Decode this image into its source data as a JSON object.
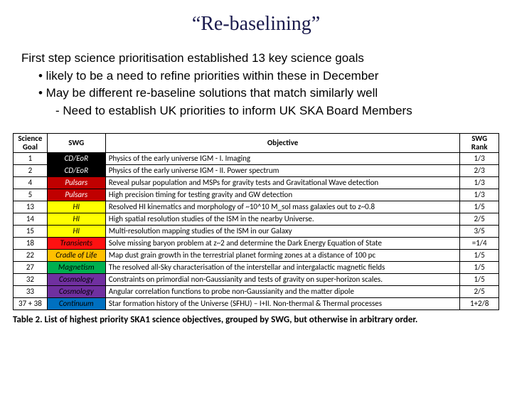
{
  "title": "“Re-baselining”",
  "intro": {
    "line1": "First step science prioritisation established 13 key science goals",
    "bullet1": "• likely to be a need to refine priorities within these in December",
    "bullet2": "• May be different re-baseline solutions that match similarly well",
    "subbullet": "- Need to establish UK priorities to inform UK SKA Board Members"
  },
  "table": {
    "headers": {
      "goal": "Science Goal",
      "swg": "SWG",
      "objective": "Objective",
      "rank": "SWG Rank"
    },
    "col_widths": {
      "goal": "7%",
      "swg": "12%",
      "objective": "73%",
      "rank": "8%"
    },
    "header_bg": "#ffffff",
    "border_color": "#000000",
    "font_size": 11,
    "rows": [
      {
        "goal": "1",
        "swg": "CD/EoR",
        "swg_bg": "#000000",
        "swg_fg": "#ffffff",
        "objective": "Physics of the early universe IGM - I. Imaging",
        "rank": "1/3"
      },
      {
        "goal": "2",
        "swg": "CD/EoR",
        "swg_bg": "#000000",
        "swg_fg": "#ffffff",
        "objective": "Physics of the early universe IGM - II. Power spectrum",
        "rank": "2/3"
      },
      {
        "goal": "4",
        "swg": "Pulsars",
        "swg_bg": "#c00000",
        "swg_fg": "#ffffff",
        "objective": "Reveal pulsar population and MSPs for gravity tests and Gravitational Wave detection",
        "rank": "1/3"
      },
      {
        "goal": "5",
        "swg": "Pulsars",
        "swg_bg": "#c00000",
        "swg_fg": "#ffffff",
        "objective": "High precision timing for testing gravity and GW detection",
        "rank": "1/3"
      },
      {
        "goal": "13",
        "swg": "HI",
        "swg_bg": "#ffff00",
        "swg_fg": "#000000",
        "objective": "Resolved HI kinematics and morphology of ~10^10 M_sol mass galaxies out to z~0.8",
        "rank": "1/5"
      },
      {
        "goal": "14",
        "swg": "HI",
        "swg_bg": "#ffff00",
        "swg_fg": "#000000",
        "objective": "High spatial resolution studies of the ISM in the nearby Universe.",
        "rank": "2/5"
      },
      {
        "goal": "15",
        "swg": "HI",
        "swg_bg": "#ffff00",
        "swg_fg": "#000000",
        "objective": "Multi-resolution mapping studies of the ISM in our Galaxy",
        "rank": "3/5"
      },
      {
        "goal": "18",
        "swg": "Transients",
        "swg_bg": "#ff1111",
        "swg_fg": "#000000",
        "objective": "Solve missing baryon problem at z~2 and determine the Dark Energy Equation of State",
        "rank": "=1/4"
      },
      {
        "goal": "22",
        "swg": "Cradle of Life",
        "swg_bg": "#ffc000",
        "swg_fg": "#000000",
        "objective": "Map dust grain growth in the terrestrial planet forming zones at a distance of 100 pc",
        "rank": "1/5"
      },
      {
        "goal": "27",
        "swg": "Magnetism",
        "swg_bg": "#00b050",
        "swg_fg": "#000000",
        "objective": "The resolved all-Sky characterisation of the interstellar and intergalactic magnetic fields",
        "rank": "1/5"
      },
      {
        "goal": "32",
        "swg": "Cosmology",
        "swg_bg": "#7030a0",
        "swg_fg": "#000000",
        "objective": "Constraints on primordial non-Gaussianity and tests of gravity on super-horizon scales.",
        "rank": "1/5"
      },
      {
        "goal": "33",
        "swg": "Cosmology",
        "swg_bg": "#7030a0",
        "swg_fg": "#000000",
        "objective": "Angular correlation functions to probe non-Gaussianity and the matter dipole",
        "rank": "2/5"
      },
      {
        "goal": "37 + 38",
        "swg": "Continuum",
        "swg_bg": "#0070c0",
        "swg_fg": "#000000",
        "objective": "Star formation history of the Universe (SFHU) – I+II. Non-thermal & Thermal processes",
        "rank": "1+2/8"
      }
    ]
  },
  "caption": {
    "bold": "Table 2. List of highest priority SKA1 science objectives, grouped by SWG, but otherwise in arbitrary order."
  }
}
